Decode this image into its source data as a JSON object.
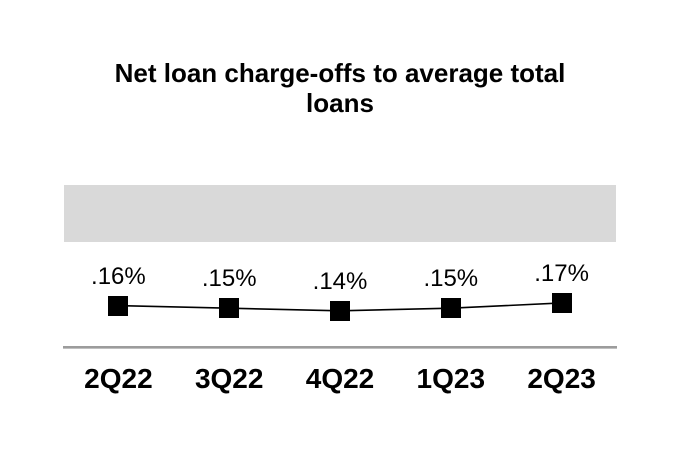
{
  "chart_data": {
    "type": "line",
    "title": "Net loan charge-offs to average total loans",
    "title_lines": [
      "Net loan charge-offs to average total",
      "loans"
    ],
    "categories": [
      "2Q22",
      "3Q22",
      "4Q22",
      "1Q23",
      "2Q23"
    ],
    "series": [
      {
        "name": "Net loan charge-offs to average total loans",
        "values": [
          0.16,
          0.15,
          0.14,
          0.15,
          0.17
        ],
        "unit": "percent"
      }
    ],
    "data_labels": [
      ".16%",
      ".15%",
      ".14%",
      ".15%",
      ".17%"
    ],
    "xlabel": "",
    "ylabel": "",
    "legend": "none",
    "grid": false,
    "marker_style": "square",
    "highlight_band": true
  },
  "colors": {
    "background": "#ffffff",
    "text": "#000000",
    "series_line": "#000000",
    "marker": "#000000",
    "highlight_band": "#d9d9d9",
    "axis_line": "#9c9c9c"
  }
}
